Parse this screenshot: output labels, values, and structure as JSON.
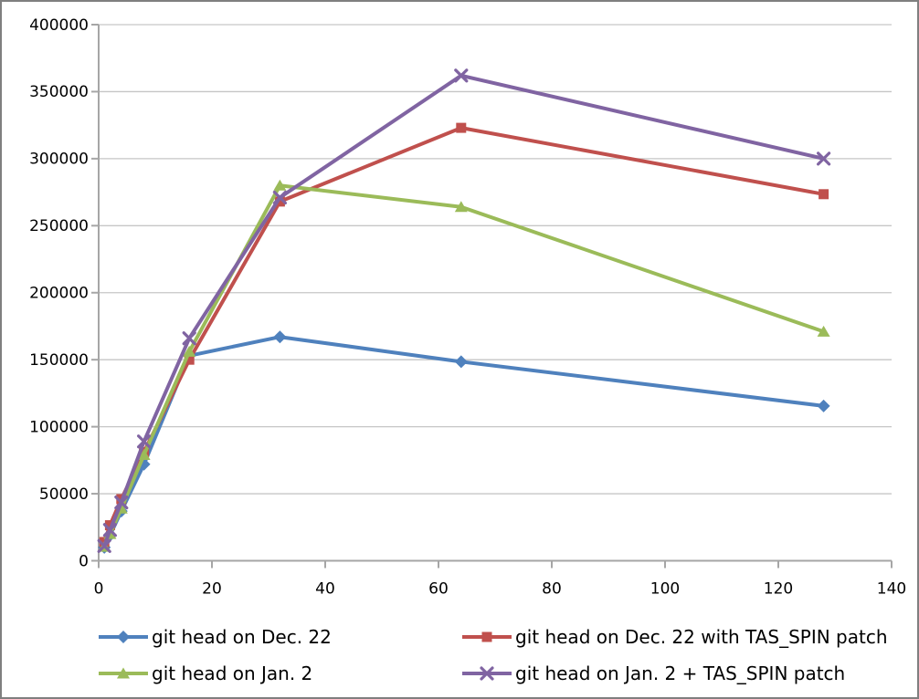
{
  "chart_data": {
    "type": "line",
    "title": "",
    "xlabel": "",
    "ylabel": "",
    "x": [
      1,
      2,
      4,
      8,
      16,
      32,
      64,
      128
    ],
    "series": [
      {
        "name": "git head on Dec. 22",
        "color": "#4F81BD",
        "marker": "diamond",
        "values": [
          10000,
          19000,
          37000,
          72000,
          153000,
          167000,
          148500,
          115500
        ]
      },
      {
        "name": "git head on Dec. 22 with TAS_SPIN patch",
        "color": "#C0504D",
        "marker": "square",
        "values": [
          14000,
          26500,
          46000,
          81000,
          150000,
          268000,
          323000,
          273500
        ]
      },
      {
        "name": "git head on Jan. 2",
        "color": "#9BBB59",
        "marker": "triangle",
        "values": [
          10500,
          20000,
          39000,
          79000,
          156000,
          280000,
          264000,
          171000
        ]
      },
      {
        "name": "git head on Jan. 2 + TAS_SPIN patch",
        "color": "#8064A2",
        "marker": "x",
        "values": [
          11000,
          23000,
          43500,
          89000,
          166000,
          271000,
          362000,
          300000
        ]
      }
    ],
    "xlim": [
      0,
      140
    ],
    "ylim": [
      0,
      400000
    ],
    "xticks": [
      0,
      20,
      40,
      60,
      80,
      100,
      120,
      140
    ],
    "yticks": [
      0,
      50000,
      100000,
      150000,
      200000,
      250000,
      300000,
      350000,
      400000
    ],
    "grid": "horizontal",
    "legend_position": "bottom"
  },
  "colors": {
    "gridline": "#C6C6C6",
    "axis": "#A6A6A6",
    "text": "#000000",
    "frame_border": "#7F7F7F",
    "background": "#FFFFFF"
  }
}
